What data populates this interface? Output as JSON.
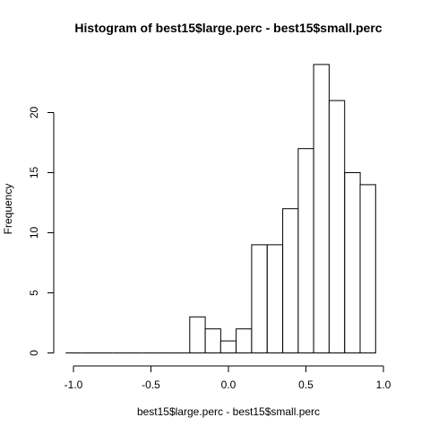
{
  "chart_data": {
    "type": "bar",
    "title": "Histogram of best15$large.perc - best15$small.perc",
    "xlabel": "best15$large.perc - best15$small.perc",
    "ylabel": "Frequency",
    "xlim": [
      -1.0,
      1.0
    ],
    "ylim": [
      0,
      24
    ],
    "x_ticks": [
      "-1.0",
      "-0.5",
      "0.0",
      "0.5",
      "1.0"
    ],
    "y_ticks": [
      "0",
      "5",
      "10",
      "15",
      "20"
    ],
    "bin_width": 0.1,
    "bins": [
      {
        "start": -1.05,
        "end": -0.95,
        "count": 0
      },
      {
        "start": -0.95,
        "end": -0.85,
        "count": 0
      },
      {
        "start": -0.85,
        "end": -0.75,
        "count": 0
      },
      {
        "start": -0.75,
        "end": -0.65,
        "count": 0
      },
      {
        "start": -0.65,
        "end": -0.55,
        "count": 0
      },
      {
        "start": -0.55,
        "end": -0.45,
        "count": 0
      },
      {
        "start": -0.45,
        "end": -0.35,
        "count": 0
      },
      {
        "start": -0.35,
        "end": -0.25,
        "count": 0
      },
      {
        "start": -0.25,
        "end": -0.15,
        "count": 3
      },
      {
        "start": -0.15,
        "end": -0.05,
        "count": 2
      },
      {
        "start": -0.05,
        "end": 0.05,
        "count": 1
      },
      {
        "start": 0.05,
        "end": 0.15,
        "count": 2
      },
      {
        "start": 0.15,
        "end": 0.25,
        "count": 9
      },
      {
        "start": 0.25,
        "end": 0.35,
        "count": 9
      },
      {
        "start": 0.35,
        "end": 0.45,
        "count": 12
      },
      {
        "start": 0.45,
        "end": 0.55,
        "count": 17
      },
      {
        "start": 0.55,
        "end": 0.65,
        "count": 24
      },
      {
        "start": 0.65,
        "end": 0.75,
        "count": 21
      },
      {
        "start": 0.75,
        "end": 0.85,
        "count": 15
      },
      {
        "start": 0.85,
        "end": 0.95,
        "count": 14
      }
    ],
    "grid": false,
    "legend": "none"
  },
  "colors": {
    "bar_fill": "#ffffff",
    "bar_stroke": "#000000",
    "axis": "#000000",
    "background": "#ffffff"
  }
}
